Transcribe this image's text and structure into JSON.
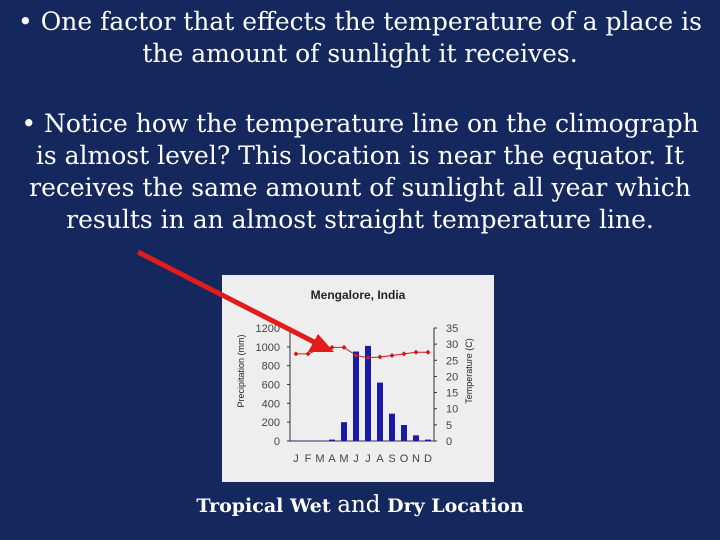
{
  "slide": {
    "bullet1": "• One factor that effects the temperature of a place is the amount of sunlight it receives.",
    "bullet2": "• Notice how the temperature line on the climograph is almost level?  This location is near the equator.  It receives the same amount of sunlight all year which results in an almost straight temperature line.",
    "caption_part1": "Tropical Wet ",
    "caption_part2": "and",
    "caption_part3": " Dry Location",
    "background_color": "#14285e",
    "arrow_color": "#e21b1b"
  },
  "chart_data": {
    "type": "bar",
    "title": "Mengalore, India",
    "categories": [
      "J",
      "F",
      "M",
      "A",
      "M",
      "J",
      "J",
      "A",
      "S",
      "O",
      "N",
      "D"
    ],
    "series": [
      {
        "type": "bar",
        "axis": "left",
        "color": "#1a1aa8",
        "values": [
          3,
          3,
          5,
          15,
          200,
          950,
          1010,
          620,
          290,
          170,
          60,
          15
        ]
      },
      {
        "type": "line",
        "axis": "right",
        "color": "#d01818",
        "values": [
          27,
          27,
          28.5,
          29,
          29,
          26.5,
          25.8,
          26,
          26.5,
          27,
          27.5,
          27.5
        ]
      }
    ],
    "ylabel": "Precipitation (mm)",
    "y2label": "Temperature (C)",
    "ylim": [
      0,
      1200
    ],
    "yticks": [
      "0",
      "200",
      "400",
      "600",
      "800",
      "1000",
      "1200"
    ],
    "y2lim": [
      0,
      35
    ],
    "y2ticks": [
      "0",
      "5",
      "10",
      "15",
      "20",
      "25",
      "30",
      "35"
    ],
    "grid": false,
    "legend": "none"
  }
}
